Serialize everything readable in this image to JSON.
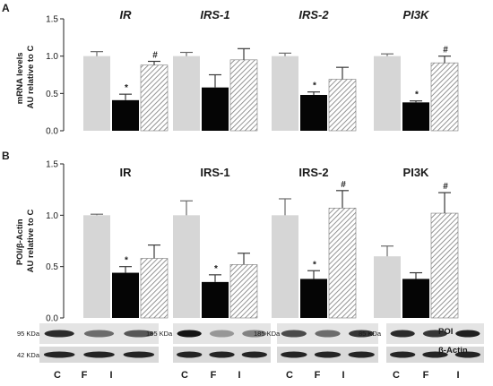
{
  "colors": {
    "C": "#d6d6d6",
    "F": "#050505",
    "I_stroke": "#7a7a7a"
  },
  "chart_data": [
    {
      "panel": "A",
      "type": "bar",
      "ylabel": [
        "mRNA levels",
        "AU relative to C"
      ],
      "ylim": [
        0,
        1.5
      ],
      "yticks": [
        "0.0",
        "0.5",
        "1.0",
        "1.5"
      ],
      "ytick_values": [
        0,
        0.5,
        1.0,
        1.5
      ],
      "title_italic": true,
      "groups": [
        {
          "title": "IR",
          "values": [
            1.0,
            0.41,
            0.88
          ],
          "errors": [
            0.06,
            0.08,
            0.05
          ],
          "marks": [
            "",
            "*",
            "#"
          ]
        },
        {
          "title": "IRS-1",
          "values": [
            1.0,
            0.58,
            0.95
          ],
          "errors": [
            0.05,
            0.17,
            0.15
          ],
          "marks": [
            "",
            "",
            ""
          ]
        },
        {
          "title": "IRS-2",
          "values": [
            1.0,
            0.48,
            0.69
          ],
          "errors": [
            0.04,
            0.04,
            0.16
          ],
          "marks": [
            "",
            "*",
            ""
          ]
        },
        {
          "title": "PI3K",
          "values": [
            1.0,
            0.38,
            0.91
          ],
          "errors": [
            0.03,
            0.02,
            0.09
          ],
          "marks": [
            "",
            "*",
            "#"
          ]
        }
      ]
    },
    {
      "panel": "B",
      "type": "bar",
      "ylabel": [
        "POI/β-Actin",
        "AU relative to C"
      ],
      "ylim": [
        0,
        1.5
      ],
      "yticks": [
        "0.0",
        "0.5",
        "1.0",
        "1.5"
      ],
      "ytick_values": [
        0,
        0.5,
        1.0,
        1.5
      ],
      "title_italic": false,
      "groups": [
        {
          "title": "IR",
          "values": [
            1.0,
            0.44,
            0.58
          ],
          "errors": [
            0.01,
            0.06,
            0.13
          ],
          "marks": [
            "",
            "*",
            ""
          ]
        },
        {
          "title": "IRS-1",
          "values": [
            1.0,
            0.35,
            0.52
          ],
          "errors": [
            0.14,
            0.07,
            0.11
          ],
          "marks": [
            "",
            "*",
            ""
          ]
        },
        {
          "title": "IRS-2",
          "values": [
            1.0,
            0.38,
            1.07
          ],
          "errors": [
            0.16,
            0.08,
            0.17
          ],
          "marks": [
            "",
            "*",
            "#"
          ]
        },
        {
          "title": "PI3K",
          "values": [
            0.6,
            0.38,
            1.02
          ],
          "errors": [
            0.1,
            0.06,
            0.2
          ],
          "marks": [
            "",
            "",
            "#"
          ]
        }
      ]
    }
  ],
  "blots": {
    "kda": [
      "95 KDa",
      "185 KDa",
      "185 KDa",
      "85 KDa"
    ],
    "loading_kda": "42 KDa",
    "row_labels": [
      "POI",
      "β-Actin"
    ],
    "conditions": [
      "C",
      "F",
      "I"
    ]
  }
}
